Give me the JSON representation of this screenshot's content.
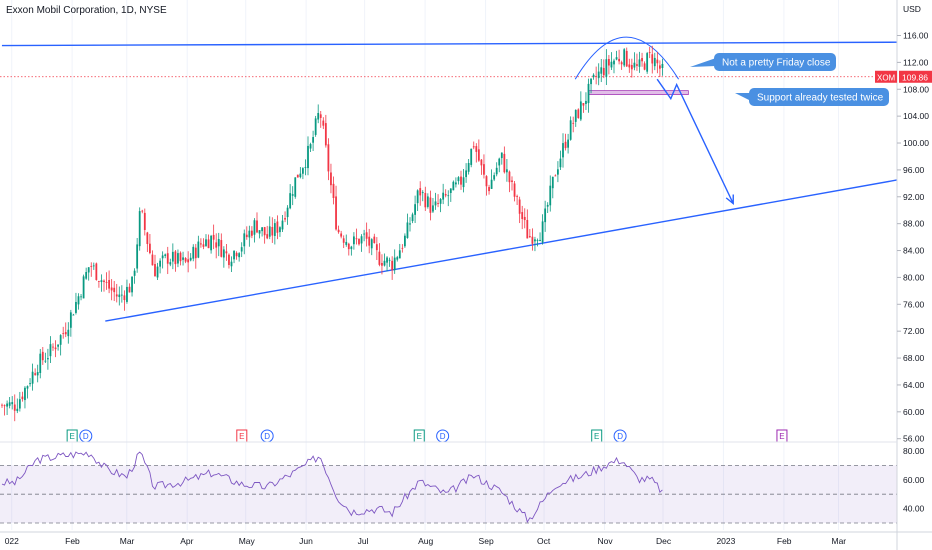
{
  "header": {
    "title": "Exxon Mobil Corporation, 1D, NYSE"
  },
  "price_axis": {
    "currency": "USD",
    "ticks": [
      "116.00",
      "112.00",
      "108.00",
      "104.00",
      "100.00",
      "96.00",
      "92.00",
      "88.00",
      "84.00",
      "80.00",
      "76.00",
      "72.00",
      "68.00",
      "64.00",
      "60.00",
      "56.00"
    ],
    "tick_values": [
      116,
      112,
      108,
      104,
      100,
      96,
      92,
      88,
      84,
      80,
      76,
      72,
      68,
      64,
      60,
      56
    ]
  },
  "rsi_axis": {
    "ticks": [
      "80.00",
      "60.00",
      "40.00"
    ],
    "tick_values": [
      80,
      60,
      40
    ],
    "upper_band": 70,
    "lower_band": 30,
    "mid": 50
  },
  "time_axis": {
    "labels": [
      "022",
      "Feb",
      "Mar",
      "Apr",
      "May",
      "Jun",
      "Jul",
      "Aug",
      "Sep",
      "Oct",
      "Nov",
      "Dec",
      "2023",
      "Feb",
      "Mar"
    ]
  },
  "last_price": {
    "symbol": "XOM",
    "value": "109.86",
    "num": 109.86
  },
  "events": [
    {
      "letter": "E",
      "kind": "earnings",
      "color": "#089981"
    },
    {
      "letter": "D",
      "kind": "dividend",
      "color": "#2962ff"
    },
    {
      "letter": "E",
      "kind": "earnings",
      "color": "#f23645"
    },
    {
      "letter": "D",
      "kind": "dividend",
      "color": "#2962ff"
    },
    {
      "letter": "E",
      "kind": "earnings",
      "color": "#089981"
    },
    {
      "letter": "D",
      "kind": "dividend",
      "color": "#2962ff"
    },
    {
      "letter": "E",
      "kind": "earnings",
      "color": "#089981"
    },
    {
      "letter": "D",
      "kind": "dividend",
      "color": "#2962ff"
    },
    {
      "letter": "E",
      "kind": "earnings",
      "color": "#9c27b0"
    }
  ],
  "annotations": {
    "callout_close": "Not a pretty Friday close",
    "callout_support": "Support already tested twice"
  },
  "colors": {
    "up": "#089981",
    "down": "#f23645",
    "trendline": "#2962ff",
    "callout_bg": "#4a90e2",
    "rsi": "#7e57c2",
    "support_zone": "#9c27b0"
  },
  "chart_data": {
    "type": "candlestick",
    "symbol": "XOM",
    "interval": "1D",
    "price_range": [
      56,
      118
    ],
    "rsi_range": [
      25,
      85
    ],
    "price_series": [
      [
        "2022-01-03",
        61
      ],
      [
        "2022-01-07",
        63
      ],
      [
        "2022-01-14",
        67
      ],
      [
        "2022-01-21",
        69
      ],
      [
        "2022-01-28",
        72
      ],
      [
        "2022-02-04",
        77
      ],
      [
        "2022-02-10",
        82
      ],
      [
        "2022-02-18",
        79
      ],
      [
        "2022-02-25",
        77
      ],
      [
        "2022-03-04",
        79
      ],
      [
        "2022-03-08",
        90
      ],
      [
        "2022-03-15",
        81
      ],
      [
        "2022-03-22",
        83
      ],
      [
        "2022-03-31",
        82
      ],
      [
        "2022-04-08",
        85
      ],
      [
        "2022-04-14",
        86
      ],
      [
        "2022-04-22",
        83
      ],
      [
        "2022-04-29",
        85
      ],
      [
        "2022-05-06",
        88
      ],
      [
        "2022-05-12",
        86
      ],
      [
        "2022-05-19",
        88
      ],
      [
        "2022-05-27",
        95
      ],
      [
        "2022-06-03",
        99
      ],
      [
        "2022-06-08",
        105
      ],
      [
        "2022-06-17",
        87
      ],
      [
        "2022-06-24",
        85
      ],
      [
        "2022-07-01",
        86
      ],
      [
        "2022-07-08",
        83
      ],
      [
        "2022-07-15",
        82
      ],
      [
        "2022-07-22",
        86
      ],
      [
        "2022-07-29",
        93
      ],
      [
        "2022-08-05",
        90
      ],
      [
        "2022-08-12",
        92
      ],
      [
        "2022-08-19",
        94
      ],
      [
        "2022-08-26",
        100
      ],
      [
        "2022-09-02",
        93
      ],
      [
        "2022-09-09",
        98
      ],
      [
        "2022-09-16",
        92
      ],
      [
        "2022-09-23",
        86
      ],
      [
        "2022-09-30",
        87
      ],
      [
        "2022-10-07",
        96
      ],
      [
        "2022-10-14",
        102
      ],
      [
        "2022-10-21",
        106
      ],
      [
        "2022-10-28",
        110
      ],
      [
        "2022-11-04",
        112
      ],
      [
        "2022-11-10",
        113
      ],
      [
        "2022-11-18",
        111
      ],
      [
        "2022-11-25",
        113
      ],
      [
        "2022-12-02",
        110
      ],
      [
        "2022-12-02",
        109.86
      ]
    ],
    "rsi_series": [
      [
        "2022-01-03",
        58
      ],
      [
        "2022-01-14",
        74
      ],
      [
        "2022-01-28",
        77
      ],
      [
        "2022-02-10",
        79
      ],
      [
        "2022-02-18",
        68
      ],
      [
        "2022-03-01",
        62
      ],
      [
        "2022-03-08",
        79
      ],
      [
        "2022-03-15",
        55
      ],
      [
        "2022-03-31",
        59
      ],
      [
        "2022-04-14",
        65
      ],
      [
        "2022-04-29",
        57
      ],
      [
        "2022-05-12",
        55
      ],
      [
        "2022-05-27",
        66
      ],
      [
        "2022-06-08",
        77
      ],
      [
        "2022-06-17",
        48
      ],
      [
        "2022-06-24",
        38
      ],
      [
        "2022-07-08",
        40
      ],
      [
        "2022-07-15",
        37
      ],
      [
        "2022-07-29",
        59
      ],
      [
        "2022-08-12",
        50
      ],
      [
        "2022-08-26",
        63
      ],
      [
        "2022-09-09",
        52
      ],
      [
        "2022-09-23",
        32
      ],
      [
        "2022-10-07",
        57
      ],
      [
        "2022-10-21",
        63
      ],
      [
        "2022-11-04",
        72
      ],
      [
        "2022-11-10",
        74
      ],
      [
        "2022-11-18",
        61
      ],
      [
        "2022-11-25",
        60
      ],
      [
        "2022-12-02",
        50
      ]
    ],
    "drawings": {
      "resistance_line": [
        [
          "2021-12-27",
          114.5
        ],
        [
          "2023-03-31",
          115
        ]
      ],
      "support_trendline": [
        [
          "2022-02-18",
          73.5
        ],
        [
          "2023-03-31",
          94.5
        ]
      ],
      "horizontal_support_zone": [
        [
          "2022-10-24",
          107.5
        ],
        [
          "2022-12-14",
          107.5
        ]
      ],
      "projection_path": [
        [
          "2022-11-28",
          109.5
        ],
        [
          "2022-12-05",
          106.6
        ],
        [
          "2022-12-08",
          108.7
        ],
        [
          "2023-01-06",
          91.0
        ]
      ]
    }
  }
}
